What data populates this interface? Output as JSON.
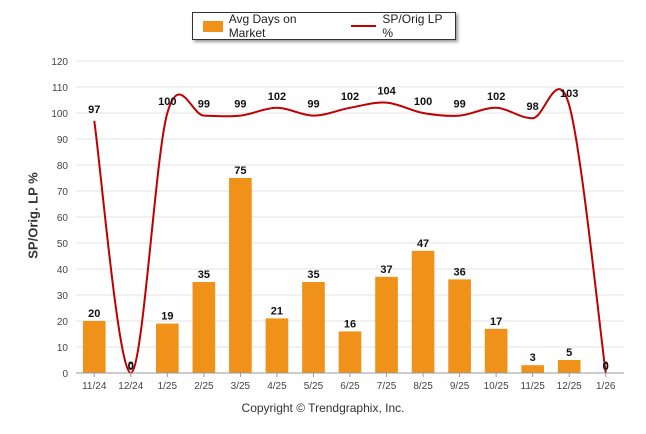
{
  "chart_data": {
    "type": "bar",
    "categories": [
      "11/24",
      "12/24",
      "1/25",
      "2/25",
      "3/25",
      "4/25",
      "5/25",
      "6/25",
      "7/25",
      "8/25",
      "9/25",
      "10/25",
      "11/25",
      "12/25",
      "1/26"
    ],
    "series": [
      {
        "name": "Avg Days on Market",
        "kind": "bar",
        "color": "#f0911a",
        "values": [
          20,
          0,
          19,
          35,
          75,
          21,
          35,
          16,
          37,
          47,
          36,
          17,
          3,
          5,
          0
        ]
      },
      {
        "name": "SP/Orig LP %",
        "kind": "line",
        "color": "#c00000",
        "values": [
          97,
          0,
          100,
          99,
          99,
          102,
          99,
          102,
          104,
          100,
          99,
          102,
          98,
          103,
          0
        ]
      }
    ],
    "ylabel": "SP/Orig. LP %",
    "ylim": [
      0,
      120
    ],
    "yticks": [
      0,
      10,
      20,
      30,
      40,
      50,
      60,
      70,
      80,
      90,
      100,
      110,
      120
    ],
    "grid": true,
    "legend_position": "top-center"
  },
  "footer": {
    "copyright": "Copyright © Trendgraphix, Inc."
  }
}
